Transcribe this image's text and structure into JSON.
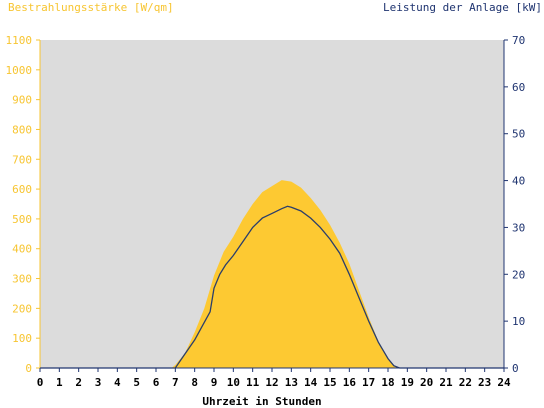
{
  "chart_data": {
    "type": "area",
    "ylabel_left": "Bestrahlungsstärke [W/qm]",
    "ylabel_right": "Leistung der Anlage [kW]",
    "xlabel": "Uhrzeit in Stunden",
    "xlim": [
      0,
      24
    ],
    "ylim_left": [
      0,
      1100
    ],
    "ylim_right": [
      0,
      70
    ],
    "xticks": [
      "0",
      "1",
      "2",
      "3",
      "4",
      "5",
      "6",
      "7",
      "8",
      "9",
      "10",
      "11",
      "12",
      "13",
      "14",
      "15",
      "16",
      "17",
      "18",
      "19",
      "20",
      "21",
      "22",
      "23",
      "24"
    ],
    "yticks_left": [
      "0",
      "100",
      "200",
      "300",
      "400",
      "500",
      "600",
      "700",
      "800",
      "900",
      "1000",
      "1100"
    ],
    "yticks_right": [
      "0",
      "10",
      "20",
      "30",
      "40",
      "50",
      "60",
      "70"
    ],
    "grid": false,
    "colors": {
      "plot_background": "#dcdcdc",
      "irradiance_fill": "#fdc932",
      "power_line": "#2b3e6b",
      "left_axis": "#f7c531",
      "right_axis": "#1f3470"
    },
    "series": [
      {
        "name": "Bestrahlungsstärke [W/qm]",
        "axis": "left",
        "style": "area",
        "x": [
          0,
          6.8,
          7.0,
          7.5,
          8.0,
          8.5,
          9.0,
          9.5,
          10.0,
          10.5,
          11.0,
          11.5,
          12.0,
          12.5,
          13.0,
          13.5,
          14.0,
          14.5,
          15.0,
          15.5,
          16.0,
          16.5,
          17.0,
          17.5,
          18.0,
          18.3,
          18.6,
          24
        ],
        "y": [
          0,
          0,
          10,
          50,
          120,
          200,
          310,
          390,
          440,
          500,
          550,
          590,
          610,
          630,
          625,
          605,
          570,
          530,
          480,
          420,
          350,
          260,
          170,
          90,
          30,
          8,
          0,
          0
        ]
      },
      {
        "name": "Leistung der Anlage [kW]",
        "axis": "right",
        "style": "line",
        "x": [
          0,
          7.0,
          7.5,
          8.0,
          8.4,
          8.8,
          9.0,
          9.3,
          9.6,
          10.0,
          10.5,
          11.0,
          11.5,
          12.0,
          12.5,
          12.8,
          13.0,
          13.5,
          14.0,
          14.5,
          15.0,
          15.5,
          16.0,
          16.5,
          17.0,
          17.5,
          18.0,
          18.3,
          18.6,
          24
        ],
        "y": [
          0,
          0,
          3,
          6,
          9,
          12,
          17,
          20,
          22,
          24,
          27,
          30,
          32,
          33,
          34,
          34.5,
          34.3,
          33.5,
          32,
          30,
          27.5,
          24.5,
          20,
          15,
          10,
          5.5,
          2,
          0.5,
          0,
          0
        ]
      }
    ]
  }
}
